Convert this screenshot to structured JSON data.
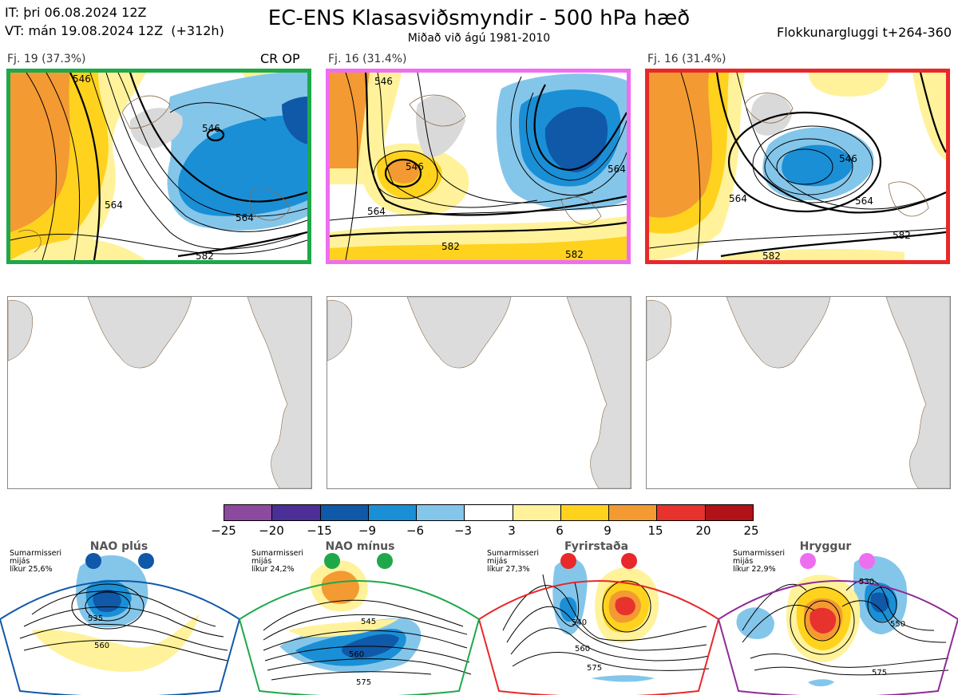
{
  "header": {
    "init_line": "IT: þri 06.08.2024 12Z",
    "valid_line": "VT: mán 19.08.2024 12Z  (+312h)",
    "title": "EC-ENS Klasasviðsmyndir - 500 hPa hæð",
    "subtitle": "Miðað við ágú 1981-2010",
    "window": "Flokkunargluggi t+264-360"
  },
  "clusters": [
    {
      "label": "Fj. 19 (37.3%)",
      "extra": "CR OP",
      "border_color": "#1fa84a",
      "contour_labels": [
        "546",
        "564",
        "564",
        "582",
        "546"
      ]
    },
    {
      "label": "Fj. 16 (31.4%)",
      "extra": "",
      "border_color": "#ee6ef0",
      "contour_labels": [
        "546",
        "546",
        "564",
        "564",
        "582",
        "582"
      ]
    },
    {
      "label": "Fj. 16 (31.4%)",
      "extra": "",
      "border_color": "#e8282a",
      "contour_labels": [
        "546",
        "564",
        "564",
        "582",
        "582"
      ]
    }
  ],
  "colorbar": {
    "colors": [
      "#8c4a9e",
      "#4b2f96",
      "#1058a8",
      "#1a8fd6",
      "#84c6ea",
      "#ffffff",
      "#fff29a",
      "#ffd21e",
      "#f49a32",
      "#e8322e",
      "#b01218"
    ],
    "ticks": [
      "−25",
      "−20",
      "−15",
      "−9",
      "−6",
      "−3",
      "3",
      "6",
      "9",
      "15",
      "20",
      "25"
    ]
  },
  "regimes": [
    {
      "name": "NAO plús",
      "note": "Sumarmisseri\nmijás\nlíkur 25,6%",
      "color": "#1058a8",
      "contour_labels": [
        "535",
        "560"
      ]
    },
    {
      "name": "NAO mínus",
      "note": "Sumarmisseri\nmijás\nlíkur 24,2%",
      "color": "#1fa84a",
      "contour_labels": [
        "545",
        "560",
        "575"
      ]
    },
    {
      "name": "Fyrirstaða",
      "note": "Sumarmisseri\nmijás\nlíkur 27,3%",
      "color": "#e8282a",
      "contour_labels": [
        "540",
        "560",
        "575"
      ]
    },
    {
      "name": "Hryggur",
      "note": "Sumarmisseri\nmijás\nlíkur 22,9%",
      "color": "#8e2b96",
      "contour_labels": [
        "530",
        "550",
        "575"
      ]
    }
  ]
}
